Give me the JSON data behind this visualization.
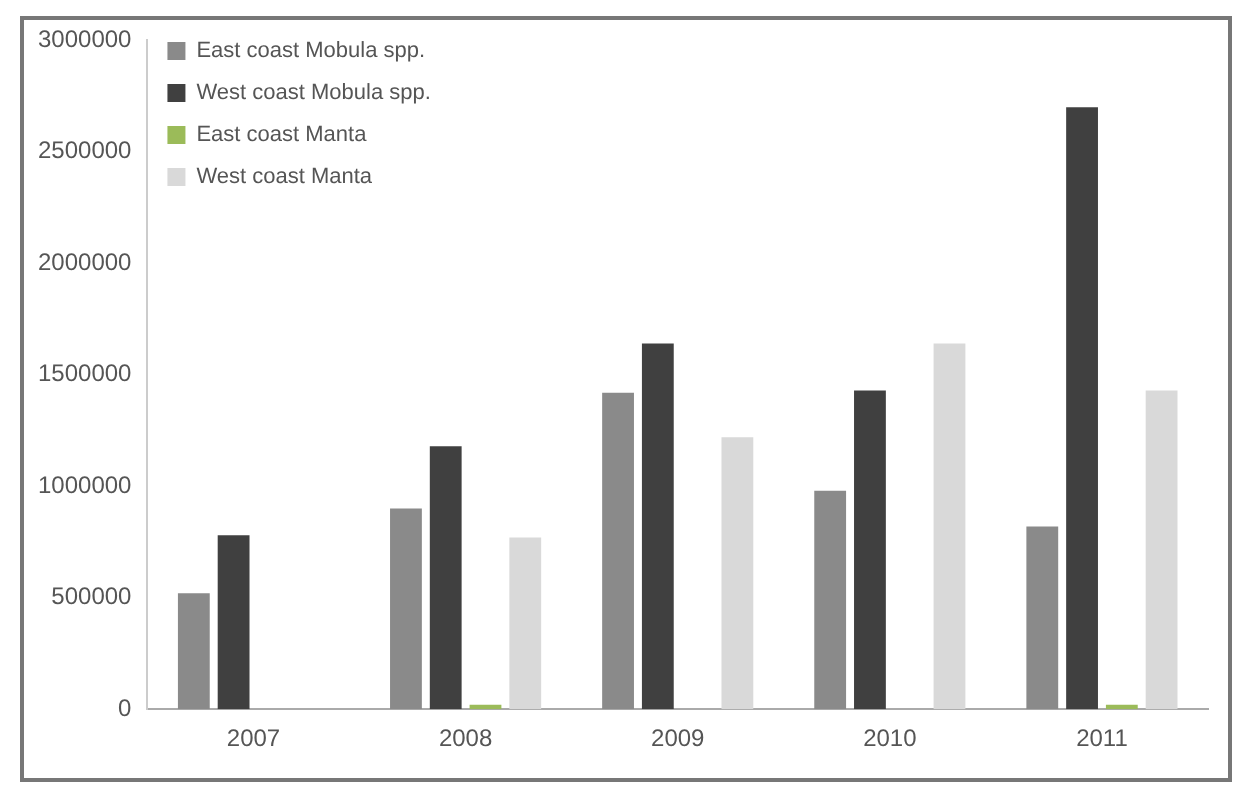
{
  "chart_data": {
    "type": "bar",
    "categories": [
      "2007",
      "2008",
      "2009",
      "2010",
      "2011"
    ],
    "series": [
      {
        "name": "East coast Mobula spp.",
        "color": "#8a8a8a",
        "values": [
          520000,
          900000,
          1420000,
          980000,
          820000
        ]
      },
      {
        "name": "West coast Mobula spp.",
        "color": "#404040",
        "values": [
          780000,
          1180000,
          1640000,
          1430000,
          2700000
        ]
      },
      {
        "name": "East coast Manta",
        "color": "#9bbb59",
        "values": [
          0,
          20000,
          0,
          0,
          20000
        ]
      },
      {
        "name": "West coast Manta",
        "color": "#d9d9d9",
        "values": [
          0,
          770000,
          1220000,
          1640000,
          1430000
        ]
      }
    ],
    "ylim": [
      0,
      3000000
    ],
    "yticks": [
      0,
      500000,
      1000000,
      1500000,
      2000000,
      2500000,
      3000000
    ],
    "grid": false,
    "legend": "top left"
  }
}
